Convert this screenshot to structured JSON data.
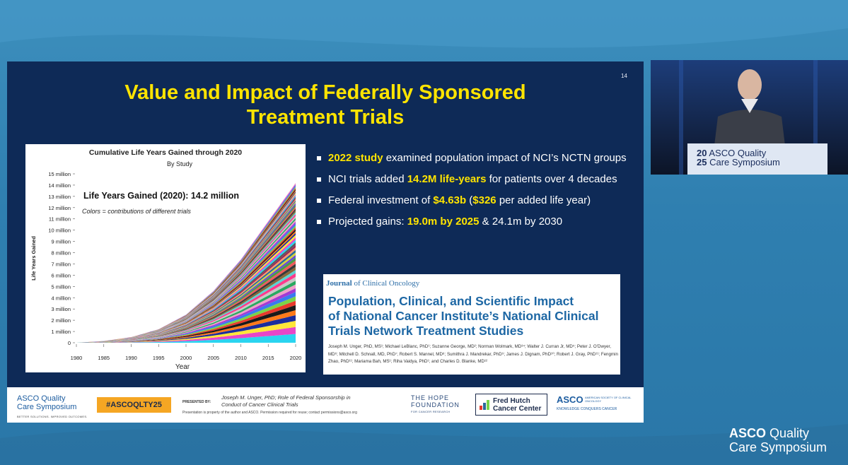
{
  "slide": {
    "number": "14",
    "title_lines": [
      "Value and Impact of Federally Sponsored",
      "Treatment Trials"
    ]
  },
  "chart_data": {
    "type": "area",
    "title": "Cumulative Life Years Gained through 2020",
    "subtitle": "By Study",
    "xlabel": "Year",
    "ylabel": "Life Years Gained",
    "annotation": "Life Years Gained (2020): 14.2 million",
    "annotation_note": "Colors = contributions of different trials",
    "x_ticks": [
      "1980",
      "1985",
      "1990",
      "1995",
      "2000",
      "2005",
      "2010",
      "2015",
      "2020"
    ],
    "y_ticks": [
      "0",
      "1 million",
      "2 million",
      "3 million",
      "4 million",
      "5 million",
      "6 million",
      "7 million",
      "8 million",
      "9 million",
      "10 million",
      "11 million",
      "12 million",
      "13 million",
      "14 million",
      "15 million"
    ],
    "xlim": [
      1980,
      2020
    ],
    "ylim": [
      0,
      15
    ],
    "x": [
      1980,
      1985,
      1990,
      1995,
      2000,
      2005,
      2010,
      2015,
      2020
    ],
    "total_millions": [
      0,
      0.15,
      0.5,
      1.2,
      2.5,
      4.6,
      7.4,
      10.8,
      14.2
    ],
    "stack_shares": [
      0.07,
      0.055,
      0.05,
      0.045,
      0.04,
      0.04,
      0.035,
      0.035,
      0.035,
      0.03,
      0.03,
      0.03,
      0.03,
      0.03,
      0.025,
      0.025,
      0.025,
      0.025,
      0.025,
      0.02,
      0.02,
      0.02,
      0.02,
      0.02,
      0.02,
      0.02,
      0.02,
      0.02,
      0.015,
      0.015,
      0.015,
      0.015,
      0.015,
      0.015,
      0.015,
      0.015,
      0.015,
      0.015,
      0.015,
      0.015,
      0.015,
      0.015,
      0.015,
      0.015,
      0.015,
      0.01,
      0.01,
      0.01,
      0.01,
      0.01,
      0.01,
      0.01,
      0.01,
      0.01,
      0.01,
      0.01,
      0.01,
      0.01,
      0.01,
      0.01,
      0.01
    ],
    "palette": [
      "#2ad4f0",
      "#e846c8",
      "#ffe63a",
      "#1b2d9e",
      "#ff7a1a",
      "#1a1a1a",
      "#e8392c",
      "#7ad34a",
      "#3a7af0",
      "#a33ad4",
      "#f0a0c8",
      "#2aa860",
      "#c8c8c8",
      "#ff3a8c",
      "#5ad4d4",
      "#8a6a3a",
      "#3a3a3a",
      "#f05a5a",
      "#4a9a4a",
      "#6a4ad4",
      "#d4d43a",
      "#2a6a9a",
      "#ff9a6a",
      "#9a2a5a",
      "#5a5a5a"
    ]
  },
  "bullets": [
    {
      "pre": "",
      "hl": "2022 study",
      "post": " examined population impact of NCI’s NCTN groups",
      "hl2": "",
      "post2": ""
    },
    {
      "pre": "NCI trials added ",
      "hl": "14.2M life-years",
      "post": " for patients over 4 decades",
      "hl2": "",
      "post2": ""
    },
    {
      "pre": "Federal investment of ",
      "hl": "$4.63b",
      "post": " (",
      "hl2": "$326",
      "post2": " per added life year)"
    },
    {
      "pre": "Projected gains: ",
      "hl": "19.0m by 2025",
      "post": " & 24.1m by 2030",
      "hl2": "",
      "post2": ""
    }
  ],
  "journal": {
    "name_a": "Journal",
    "name_b": " of Clinical Oncology",
    "title_lines": [
      "Population, Clinical, and Scientific Impact",
      "of National Cancer Institute’s National Clinical",
      "Trials Network Treatment Studies"
    ],
    "authors": "Joseph M. Unger, PhD, MS¹; Michael LeBlanc, PhD¹; Suzanne George, MD²; Norman Wolmark, MD³⁴; Walter J. Curran Jr, MD⁵; Peter J. O’Dwyer, MD⁶; Mitchell D. Schnall, MD, PhD⁷; Robert S. Mannel, MD⁸; Sumithra J. Mandrekar, PhD⁹; James J. Dignam, PhD¹⁰; Robert J. Gray, PhD¹¹; Fengmin Zhao, PhD¹¹; Mariama Bah, MS¹; Riha Vaidya, PhD¹; and Charles D. Blanke, MD¹²"
  },
  "footer": {
    "logo_line1": "ASCO Quality",
    "logo_line2": "Care Symposium",
    "logo_sub": "BETTER SOLUTIONS. IMPROVED OUTCOMES.",
    "hashtag": "#ASCOQLTY25",
    "presented_by": "PRESENTED BY:",
    "speaker_line1": "Joseph M. Unger, PhD; Role of Federal Sponsorship in",
    "speaker_line2": "Conduct of Cancer Clinical Trials",
    "note": "Presentation is property of the author and ASCO. Permission required for reuse; contact permissions@asco.org",
    "hope_line1": "THE HOPE",
    "hope_line2": "FOUNDATION",
    "hope_sub": "FOR CANCER RESEARCH",
    "fh_line1": "Fred Hutch",
    "fh_line2": "Cancer Center",
    "asco2": "ASCO",
    "asco2_side": "AMERICAN SOCIETY OF CLINICAL ONCOLOGY",
    "asco2_tag": "KNOWLEDGE CONQUERS CANCER"
  },
  "video": {
    "podium_num1": "20",
    "podium_text1": "ASCO Quality",
    "podium_num2": "25",
    "podium_text2": "Care Symposium"
  },
  "brand": {
    "line1": "ASCO",
    "line1b": " Quality",
    "line2": "Care Symposium"
  },
  "colors": {
    "accent_yellow": "#ffe400",
    "slide_bg": "#0e2a57",
    "frame_blue": "#2f7fb0"
  }
}
